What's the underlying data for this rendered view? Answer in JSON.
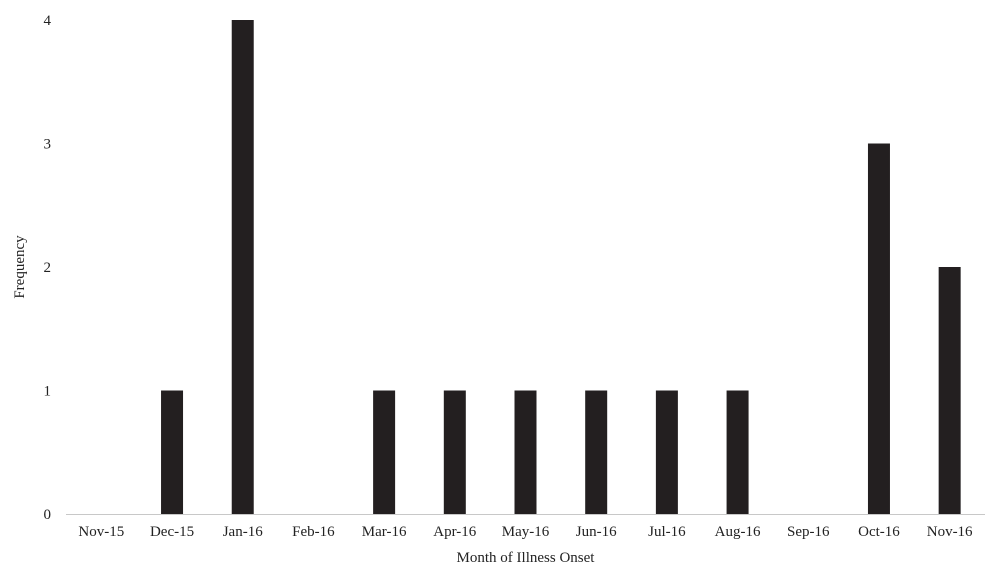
{
  "chart_data": {
    "type": "bar",
    "categories": [
      "Nov-15",
      "Dec-15",
      "Jan-16",
      "Feb-16",
      "Mar-16",
      "Apr-16",
      "May-16",
      "Jun-16",
      "Jul-16",
      "Aug-16",
      "Sep-16",
      "Oct-16",
      "Nov-16"
    ],
    "values": [
      0,
      1,
      4,
      0,
      1,
      1,
      1,
      1,
      1,
      1,
      0,
      3,
      2
    ],
    "xlabel": "Month of Illness Onset",
    "ylabel": "Frequency",
    "ylim": [
      0,
      4
    ],
    "yticks": [
      0,
      1,
      2,
      3,
      4
    ],
    "grid": false,
    "bar_color": "#231f20"
  }
}
